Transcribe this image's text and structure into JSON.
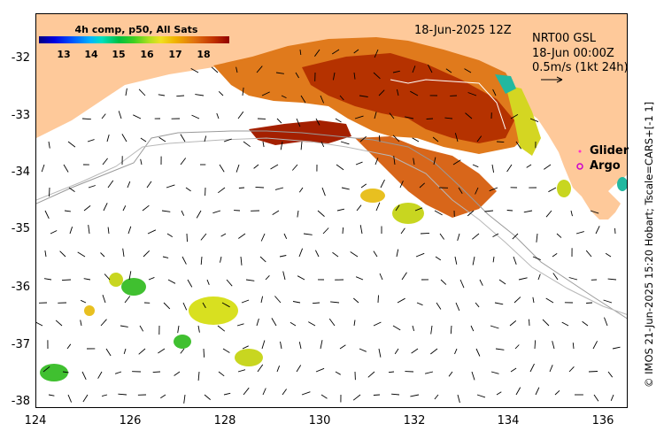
{
  "map": {
    "title_time": "18-Jun-2025 12Z",
    "current_info": {
      "line1": "NRT00 GSL",
      "line2": "18-Jun 00:00Z",
      "line3": "0.5m/s (1kt 24h)"
    },
    "colorbar": {
      "title": "4h comp, p50, All Sats",
      "ticks": [
        "13",
        "14",
        "15",
        "16",
        "17",
        "18"
      ]
    },
    "legend": {
      "glider": "Glider",
      "argo": "Argo",
      "glider_color": "#ff33cc",
      "argo_color": "#cc00cc"
    },
    "y_ticks": [
      "-32",
      "-33",
      "-34",
      "-35",
      "-36",
      "-37",
      "-38"
    ],
    "x_ticks": [
      "124",
      "126",
      "128",
      "130",
      "132",
      "134",
      "136"
    ],
    "credit": "© IMOS 21-Jun-2025 15:20 Hobart; Tscale=CARS+[-1 1]",
    "colors": {
      "land": "#fec99a",
      "warm": "#b83a00",
      "mid": "#e0801a",
      "cool": "#c8d61e"
    }
  }
}
